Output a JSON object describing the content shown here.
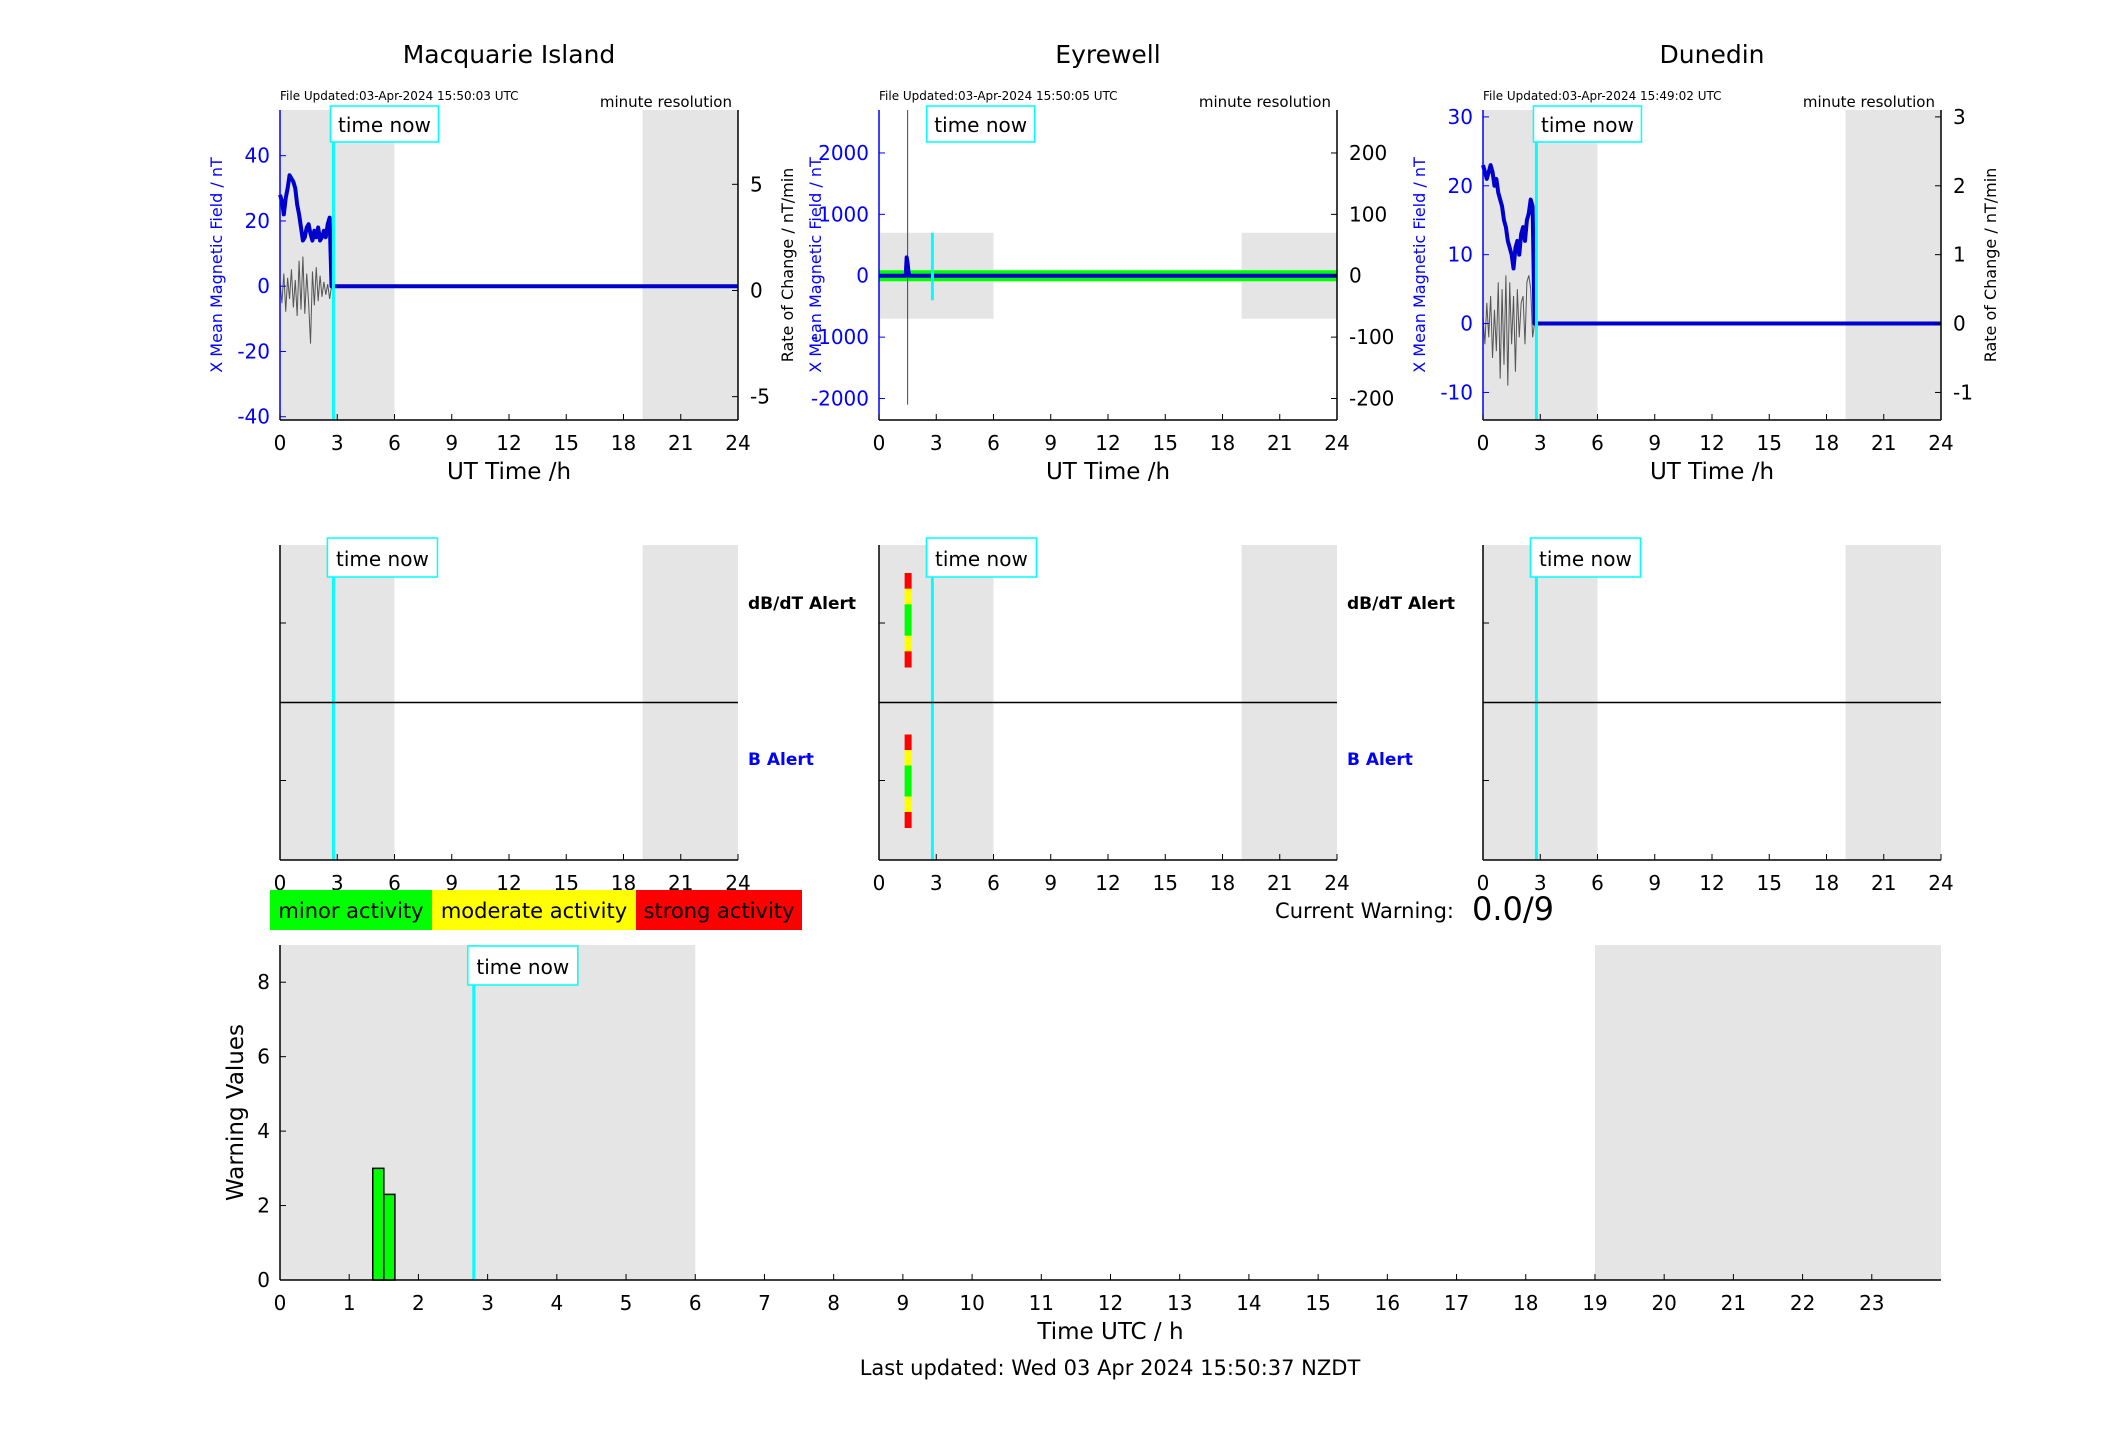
{
  "colors": {
    "blue": "#0000ff",
    "navy": "#0000cc",
    "cyan": "#00ffff",
    "shade": "#e5e5e5",
    "green": "#00ff00",
    "yellow": "#ffff00",
    "red": "#ff0000",
    "dark_green": "#008800"
  },
  "common": {
    "time_now_label": "time now",
    "minute_resolution": "minute resolution",
    "ut_axis_label": "UT Time /h",
    "x_ticks": [
      "0",
      "3",
      "6",
      "9",
      "12",
      "15",
      "18",
      "21",
      "24"
    ]
  },
  "stations": [
    {
      "title": "Macquarie Island",
      "file_updated": "File Updated:03-Apr-2024 15:50:03 UTC",
      "left_axis_label": "X Mean Magnetic Field / nT",
      "right_axis_label": "Rate of Change / nT/min",
      "show_left_label": true,
      "show_right_label": true,
      "left_ticks": [
        "-40",
        "-20",
        "0",
        "20",
        "40"
      ],
      "right_ticks": [
        "-5",
        "0",
        "5"
      ],
      "dbdt_label": "dB/dT Alert",
      "b_label": "B Alert"
    },
    {
      "title": "Eyrewell",
      "file_updated": "File Updated:03-Apr-2024 15:50:05 UTC",
      "left_axis_label": "X Mean Magnetic Field / nT",
      "right_axis_label": "Rate of Change / nT/min",
      "show_left_label": true,
      "show_right_label": false,
      "left_ticks": [
        "-2000",
        "-1000",
        "0",
        "1000",
        "2000"
      ],
      "right_ticks": [
        "-200",
        "-100",
        "0",
        "100",
        "200"
      ],
      "dbdt_label": "dB/dT Alert",
      "b_label": "B Alert"
    },
    {
      "title": "Dunedin",
      "file_updated": "File Updated:03-Apr-2024 15:49:02 UTC",
      "left_axis_label": "X Mean Magnetic Field / nT",
      "right_axis_label": "Rate of Change / nT/min",
      "show_left_label": true,
      "show_right_label": true,
      "left_ticks": [
        "-10",
        "0",
        "10",
        "20",
        "30"
      ],
      "right_ticks": [
        "-1",
        "0",
        "1",
        "2",
        "3"
      ],
      "dbdt_label": "",
      "b_label": ""
    }
  ],
  "legend": {
    "minor": "minor activity",
    "moderate": "moderate activity",
    "strong": "strong activity"
  },
  "current_warning": {
    "label": "Current Warning:",
    "value": "0.0/9"
  },
  "footer": {
    "last_updated": "Last updated: Wed 03 Apr 2024 15:50:37 NZDT"
  },
  "chart_data": [
    {
      "type": "line",
      "station": "Macquarie Island",
      "xlim": [
        0,
        24
      ],
      "ylim": [
        -41,
        54
      ],
      "y2lim": [
        -6.1,
        8.5
      ],
      "time_now_h": 2.8,
      "shaded_h": [
        [
          0,
          6
        ],
        [
          19,
          24
        ]
      ],
      "series": [
        {
          "role": "field",
          "x": [
            0,
            0.1,
            0.2,
            0.3,
            0.4,
            0.5,
            0.6,
            0.7,
            0.8,
            0.9,
            1.0,
            1.1,
            1.2,
            1.3,
            1.4,
            1.5,
            1.6,
            1.7,
            1.8,
            1.9,
            2.0,
            2.1,
            2.2,
            2.3,
            2.4,
            2.5,
            2.6,
            2.7,
            2.8,
            2.9,
            4,
            8,
            12,
            16,
            20,
            24
          ],
          "y": [
            28,
            26,
            22,
            27,
            30,
            34,
            33,
            32,
            30,
            25,
            22,
            18,
            14,
            15,
            18,
            19,
            16,
            14,
            17,
            15,
            18,
            14,
            15,
            17,
            15,
            19,
            21,
            0,
            0,
            0,
            0,
            0,
            0,
            0,
            0,
            0
          ]
        },
        {
          "role": "rate",
          "x": [
            0,
            0.1,
            0.2,
            0.3,
            0.4,
            0.5,
            0.6,
            0.7,
            0.8,
            0.9,
            1.0,
            1.1,
            1.2,
            1.3,
            1.4,
            1.5,
            1.6,
            1.7,
            1.8,
            1.9,
            2.0,
            2.1,
            2.2,
            2.3,
            2.4,
            2.5,
            2.6,
            2.7,
            2.8
          ],
          "y": [
            0.4,
            -0.6,
            0.8,
            -1.0,
            0.6,
            -0.4,
            1.0,
            -0.8,
            0.5,
            -1.2,
            1.4,
            -0.9,
            1.6,
            -1.1,
            0.8,
            -0.6,
            -2.5,
            0.9,
            -0.7,
            1.1,
            -0.5,
            0.7,
            -0.3,
            0.4,
            -0.2,
            0.3,
            -0.4,
            0.2,
            0
          ]
        }
      ]
    },
    {
      "type": "line",
      "station": "Eyrewell",
      "xlim": [
        0,
        24
      ],
      "ylim": [
        -2350,
        2700
      ],
      "y2lim": [
        -235,
        270
      ],
      "time_now_h": 2.8,
      "shaded_h": [
        [
          0,
          6
        ],
        [
          19,
          24
        ]
      ],
      "shaded_y": [
        -700,
        700
      ],
      "series": [
        {
          "role": "field",
          "x": [
            0,
            1.4,
            1.45,
            1.5,
            1.55,
            1.6,
            24
          ],
          "y": [
            0,
            0,
            300,
            200,
            50,
            0,
            0
          ]
        },
        {
          "role": "rate",
          "x": [
            1.5,
            1.5,
            1.5
          ],
          "y": [
            -200,
            260,
            0
          ]
        }
      ]
    },
    {
      "type": "line",
      "station": "Dunedin",
      "xlim": [
        0,
        24
      ],
      "ylim": [
        -14,
        31
      ],
      "y2lim": [
        -1.4,
        3.1
      ],
      "time_now_h": 2.8,
      "shaded_h": [
        [
          0,
          6
        ],
        [
          19,
          24
        ]
      ],
      "series": [
        {
          "role": "field",
          "x": [
            0,
            0.1,
            0.2,
            0.3,
            0.4,
            0.5,
            0.6,
            0.7,
            0.8,
            0.9,
            1.0,
            1.1,
            1.2,
            1.3,
            1.4,
            1.5,
            1.6,
            1.7,
            1.8,
            1.9,
            2.0,
            2.1,
            2.2,
            2.3,
            2.4,
            2.5,
            2.6,
            2.7,
            3,
            6,
            12,
            18,
            24
          ],
          "y": [
            23,
            22,
            21,
            22,
            23,
            22,
            20,
            21,
            19,
            18,
            17,
            15,
            14,
            12,
            11,
            10,
            8,
            11,
            12,
            10,
            13,
            14,
            12,
            15,
            16,
            18,
            17,
            0,
            0,
            0,
            0,
            0,
            0
          ]
        },
        {
          "role": "rate",
          "x": [
            0,
            0.1,
            0.2,
            0.3,
            0.4,
            0.5,
            0.6,
            0.7,
            0.8,
            0.9,
            1.0,
            1.1,
            1.2,
            1.3,
            1.4,
            1.5,
            1.6,
            1.7,
            1.8,
            1.9,
            2.0,
            2.1,
            2.2,
            2.3,
            2.4,
            2.5,
            2.6,
            2.7
          ],
          "y": [
            0.1,
            -0.3,
            0.3,
            -0.2,
            0.4,
            -0.5,
            0.2,
            -0.4,
            0.6,
            -0.8,
            0.5,
            -0.6,
            0.7,
            -0.9,
            0.6,
            -0.3,
            0.4,
            -0.7,
            0.5,
            -0.2,
            0.3,
            0.4,
            -0.3,
            0.6,
            0.7,
            0.5,
            -0.2,
            0
          ]
        }
      ]
    },
    {
      "type": "bar",
      "title": "",
      "xlabel": "Time UTC / h",
      "ylabel": "Warning Values",
      "xlim": [
        0,
        24
      ],
      "ylim": [
        0,
        9
      ],
      "x_ticks": [
        "0",
        "1",
        "2",
        "3",
        "4",
        "5",
        "6",
        "7",
        "8",
        "9",
        "10",
        "11",
        "12",
        "13",
        "14",
        "15",
        "16",
        "17",
        "18",
        "19",
        "20",
        "21",
        "22",
        "23"
      ],
      "y_ticks": [
        "0",
        "2",
        "4",
        "6",
        "8"
      ],
      "time_now_h": 2.8,
      "shaded_h": [
        [
          0,
          6
        ],
        [
          19,
          24
        ]
      ],
      "bars": [
        {
          "x": 1.42,
          "value": 3.0
        },
        {
          "x": 1.58,
          "value": 2.3
        }
      ]
    }
  ],
  "alert_data": [
    {
      "dbdt_bar": false,
      "b_bar": false
    },
    {
      "dbdt_bar": true,
      "b_bar": true,
      "bar_x_h": 1.5,
      "bar_colors": [
        "red",
        "yellow",
        "green",
        "green",
        "yellow",
        "red"
      ]
    },
    {
      "dbdt_bar": false,
      "b_bar": false
    }
  ]
}
